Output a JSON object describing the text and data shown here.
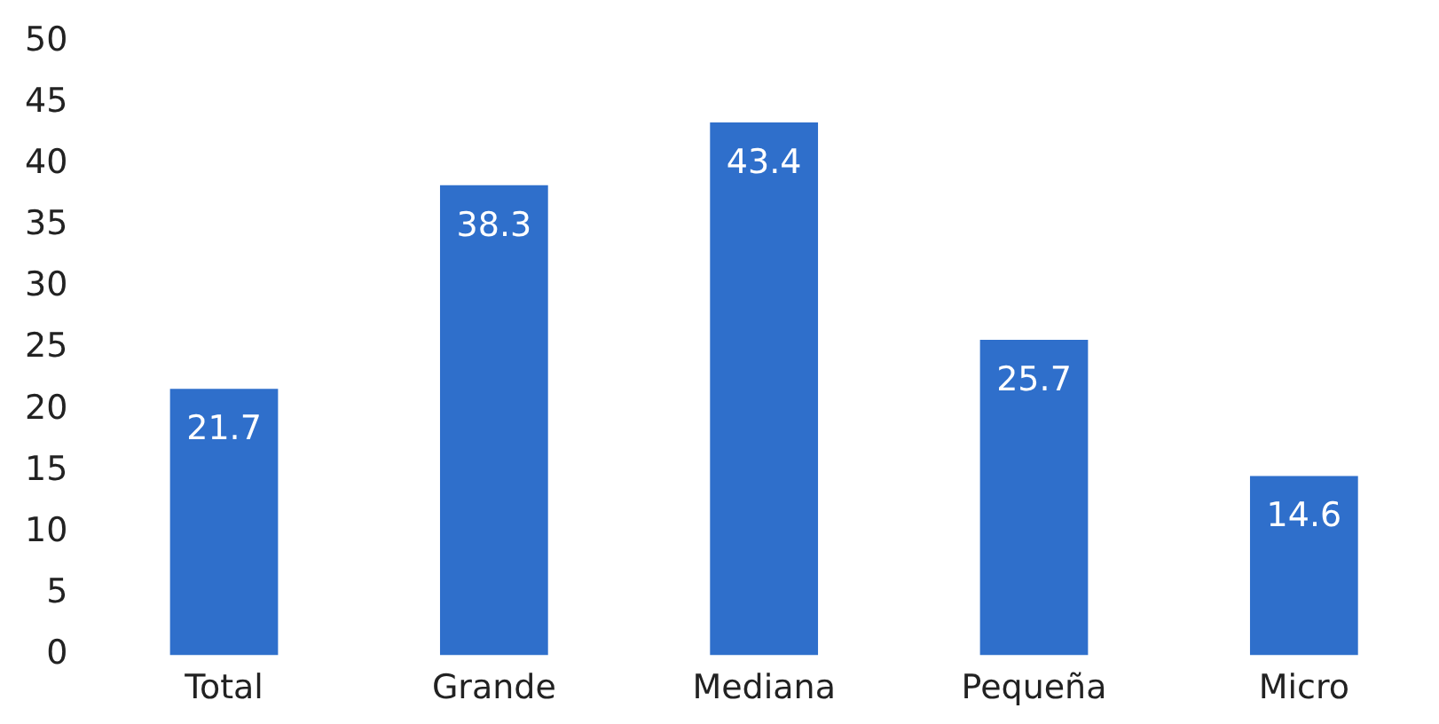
{
  "chart_data": {
    "type": "bar",
    "categories": [
      "Total",
      "Grande",
      "Mediana",
      "Pequeña",
      "Micro"
    ],
    "values": [
      21.7,
      38.3,
      43.4,
      25.7,
      14.6
    ],
    "color": "#2f6fcb",
    "ylim": [
      0,
      50
    ],
    "yticks": [
      0,
      5,
      10,
      15,
      20,
      25,
      30,
      35,
      40,
      45,
      50
    ],
    "grid": false,
    "legend": false,
    "data_labels": true
  }
}
